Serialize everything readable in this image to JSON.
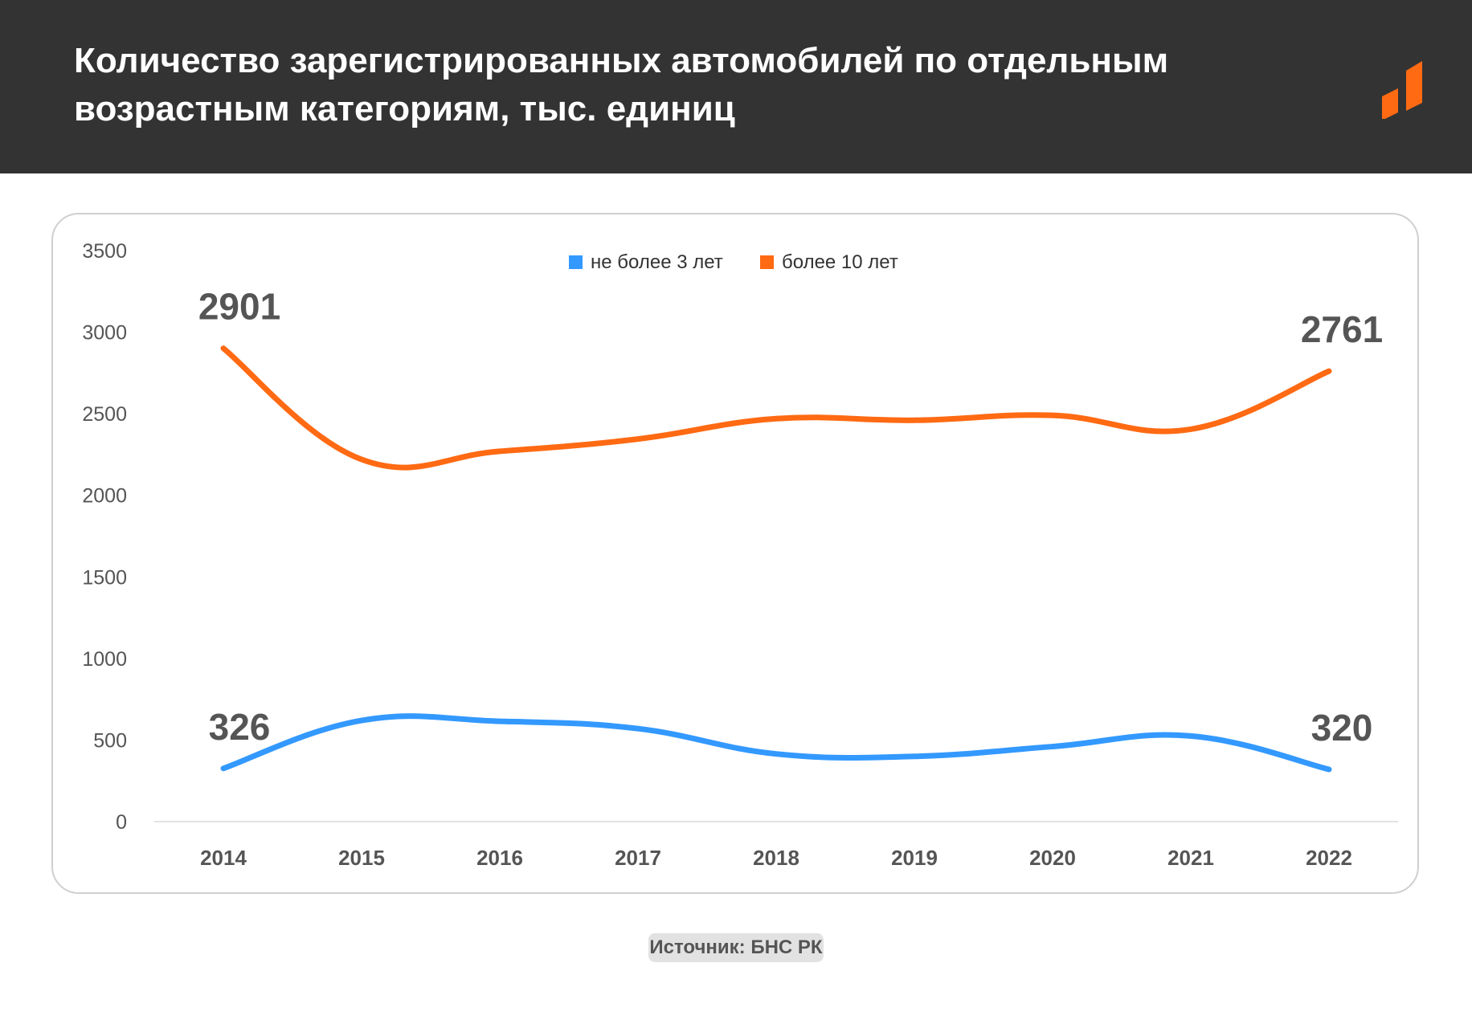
{
  "title_lines": [
    "Количество зарегистрированных автомобилей по отдельным",
    "возрастным категориям, тыс. единиц"
  ],
  "source": "Источник: БНС РК",
  "colors": {
    "header_bg": "#333333",
    "series_new": "#3399ff",
    "series_old": "#ff6a13",
    "text_dark": "#555555"
  },
  "chart_data": {
    "type": "line",
    "title": "Количество зарегистрированных автомобилей по отдельным возрастным категориям, тыс. единиц",
    "categories": [
      "2014",
      "2015",
      "2016",
      "2017",
      "2018",
      "2019",
      "2020",
      "2021",
      "2022"
    ],
    "series": [
      {
        "name": "не более 3 лет",
        "color": "#3399ff",
        "values": [
          326,
          620,
          615,
          570,
          415,
          400,
          460,
          525,
          320
        ]
      },
      {
        "name": "более 10 лет",
        "color": "#ff6a13",
        "values": [
          2901,
          2220,
          2270,
          2345,
          2470,
          2460,
          2490,
          2405,
          2761
        ]
      }
    ],
    "data_labels": [
      {
        "series": 1,
        "index": 0,
        "text": "2901"
      },
      {
        "series": 1,
        "index": 8,
        "text": "2761"
      },
      {
        "series": 0,
        "index": 0,
        "text": "326"
      },
      {
        "series": 0,
        "index": 8,
        "text": "320"
      }
    ],
    "y_ticks": [
      0,
      500,
      1000,
      1500,
      2000,
      2500,
      3000,
      3500
    ],
    "ylim": [
      0,
      3500
    ],
    "grid": false,
    "legend_position": "top-center",
    "xlabel": "",
    "ylabel": ""
  }
}
